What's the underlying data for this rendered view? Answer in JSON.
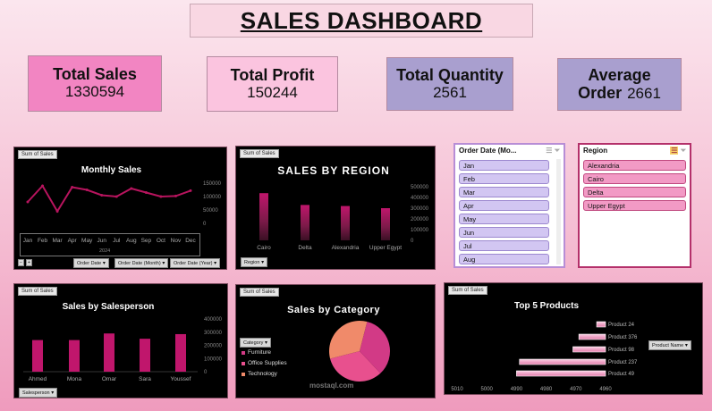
{
  "title": "SALES DASHBOARD",
  "kpis": {
    "total_sales": {
      "label": "Total Sales",
      "value": "1330594"
    },
    "total_profit": {
      "label": "Total Profit",
      "value": "150244"
    },
    "total_quantity": {
      "label": "Total Quantity",
      "value": "2561"
    },
    "average_order": {
      "label_line1": "Average",
      "label_line2": "Order",
      "value": "2661"
    }
  },
  "colors": {
    "accent_pink": "#f285c2",
    "light_pink": "#fbc4df",
    "lavender": "#a99fcf",
    "bar_magenta": "#c0166c",
    "line_magenta": "#b8145e"
  },
  "monthly": {
    "tag": "Sum of Sales",
    "filters": [
      "Order Date",
      "Order Date (Month)",
      "Order Date (Year)"
    ],
    "year_label": "2024",
    "chart_data": {
      "type": "line",
      "title": "Monthly Sales",
      "categories": [
        "Jan",
        "Feb",
        "Mar",
        "Apr",
        "May",
        "Jun",
        "Jul",
        "Aug",
        "Sep",
        "Oct",
        "Nov",
        "Dec"
      ],
      "values": [
        80000,
        140000,
        45000,
        135000,
        125000,
        105000,
        100000,
        130000,
        115000,
        100000,
        102000,
        122000
      ],
      "ylim": [
        0,
        150000
      ],
      "yticks": [
        "150000",
        "100000",
        "50000",
        "0"
      ]
    }
  },
  "region_chart": {
    "tag": "Sum of Sales",
    "filter": "Region",
    "chart_data": {
      "type": "bar",
      "title": "SALES BY REGION",
      "categories": [
        "Cairo",
        "Delta",
        "Alexandria",
        "Upper Egypt"
      ],
      "values": [
        440000,
        330000,
        320000,
        300000
      ],
      "ylim": [
        0,
        500000
      ],
      "yticks": [
        "500000",
        "400000",
        "300000",
        "200000",
        "100000",
        "0"
      ]
    }
  },
  "order_date_slicer": {
    "header": "Order Date (Mo...",
    "items": [
      "Jan",
      "Feb",
      "Mar",
      "Apr",
      "May",
      "Jun",
      "Jul",
      "Aug"
    ]
  },
  "region_slicer": {
    "header": "Region",
    "items": [
      "Alexandria",
      "Cairo",
      "Delta",
      "Upper Egypt"
    ]
  },
  "salesperson": {
    "tag": "Sum of Sales",
    "filter": "Salesperson",
    "chart_data": {
      "type": "bar",
      "title": "Sales by Salesperson",
      "categories": [
        "Ahmed",
        "Mona",
        "Omar",
        "Sara",
        "Youssef"
      ],
      "values": [
        240000,
        240000,
        290000,
        250000,
        285000
      ],
      "ylim": [
        0,
        400000
      ],
      "yticks": [
        "400000",
        "300000",
        "200000",
        "100000",
        "0"
      ]
    }
  },
  "category": {
    "tag": "Sum of Sales",
    "filter": "Category",
    "chart_data": {
      "type": "pie",
      "title": "Sales by Category",
      "categories": [
        "Furniture",
        "Office Supplies",
        "Technology"
      ],
      "values": [
        34,
        33,
        33
      ]
    }
  },
  "top5": {
    "tag": "Sum of Sales",
    "filter": "Product Name",
    "chart_data": {
      "type": "bar",
      "title": "Top 5 Products",
      "categories": [
        "Product 24",
        "Product 376",
        "Product 98",
        "Product 237",
        "Product 49"
      ],
      "values": [
        4963,
        4969,
        4971,
        4989,
        4990
      ],
      "xticks": [
        "5010",
        "5000",
        "4990",
        "4980",
        "4970",
        "4960"
      ]
    }
  },
  "watermark": "mostaql.com"
}
